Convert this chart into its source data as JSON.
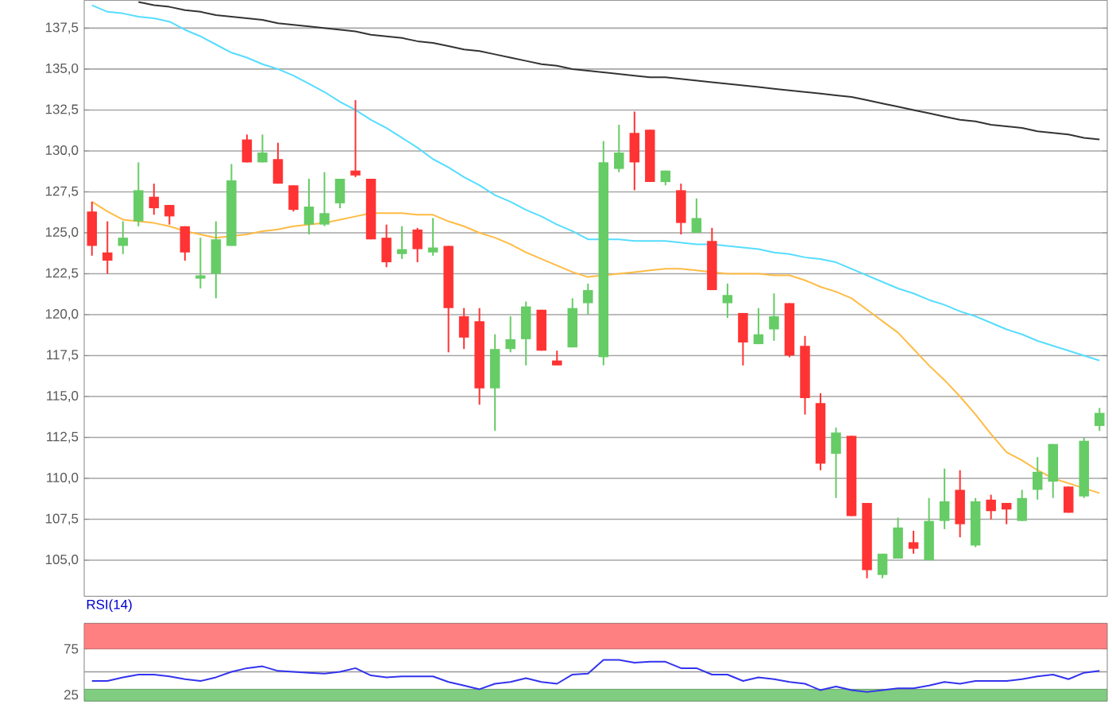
{
  "chart_data": [
    {
      "type": "candlestick",
      "categories": [
        null,
        null,
        null,
        null,
        null,
        null,
        null,
        null,
        null,
        null,
        null,
        null,
        null,
        null,
        null,
        null,
        null,
        null,
        null,
        null,
        null,
        null,
        null,
        null,
        null,
        null,
        null,
        null,
        null,
        null,
        null,
        null,
        null,
        null,
        null,
        null,
        null,
        null,
        null,
        null,
        null,
        null,
        null,
        null,
        null,
        null,
        null,
        null,
        null,
        null,
        null,
        null,
        null,
        null,
        null,
        null,
        null,
        null,
        null,
        null,
        null,
        null,
        null,
        null,
        null,
        null
      ],
      "ohlc": [
        [
          126.3,
          126.9,
          123.6,
          124.2
        ],
        [
          123.8,
          125.7,
          122.5,
          123.3
        ],
        [
          124.2,
          125.7,
          123.7,
          124.7
        ],
        [
          125.7,
          129.3,
          125.4,
          127.6
        ],
        [
          127.2,
          128.0,
          126.1,
          126.5
        ],
        [
          126.7,
          126.7,
          125.5,
          126.0
        ],
        [
          125.4,
          125.4,
          123.3,
          123.8
        ],
        [
          122.2,
          124.7,
          121.6,
          122.4
        ],
        [
          122.5,
          125.7,
          121.0,
          124.6
        ],
        [
          124.2,
          129.2,
          124.2,
          128.2
        ],
        [
          130.7,
          131.0,
          129.3,
          129.3
        ],
        [
          129.3,
          131.0,
          129.3,
          129.9
        ],
        [
          129.5,
          130.5,
          128.0,
          128.0
        ],
        [
          127.9,
          127.9,
          126.3,
          126.4
        ],
        [
          125.5,
          128.3,
          124.9,
          126.6
        ],
        [
          125.5,
          128.7,
          125.4,
          126.2
        ],
        [
          126.8,
          128.3,
          126.5,
          128.3
        ],
        [
          128.8,
          133.1,
          128.4,
          128.5
        ],
        [
          128.3,
          128.3,
          124.6,
          124.6
        ],
        [
          124.7,
          125.5,
          122.9,
          123.2
        ],
        [
          123.7,
          125.4,
          123.4,
          124.0
        ],
        [
          125.2,
          125.3,
          123.2,
          124.0
        ],
        [
          123.8,
          125.9,
          123.6,
          124.1
        ],
        [
          124.2,
          124.2,
          117.7,
          120.4
        ],
        [
          119.9,
          120.4,
          117.9,
          118.6
        ],
        [
          119.6,
          120.4,
          114.5,
          115.5
        ],
        [
          115.5,
          118.8,
          112.9,
          117.9
        ],
        [
          117.9,
          119.9,
          117.7,
          118.5
        ],
        [
          118.5,
          120.8,
          116.9,
          120.5
        ],
        [
          120.3,
          120.3,
          117.8,
          117.8
        ],
        [
          117.2,
          117.8,
          116.9,
          116.9
        ],
        [
          118.0,
          121.0,
          118.0,
          120.4
        ],
        [
          120.7,
          121.9,
          120.0,
          121.5
        ],
        [
          117.4,
          130.6,
          116.9,
          129.3
        ],
        [
          128.9,
          131.6,
          128.7,
          129.9
        ],
        [
          131.1,
          132.4,
          127.6,
          129.3
        ],
        [
          131.3,
          131.3,
          128.1,
          128.1
        ],
        [
          128.1,
          128.8,
          127.9,
          128.8
        ],
        [
          127.6,
          128.0,
          124.9,
          125.6
        ],
        [
          125.0,
          127.1,
          125.0,
          125.9
        ],
        [
          124.5,
          125.3,
          121.5,
          121.5
        ],
        [
          120.7,
          121.9,
          119.8,
          121.2
        ],
        [
          120.1,
          120.1,
          116.9,
          118.3
        ],
        [
          118.2,
          120.4,
          118.2,
          118.8
        ],
        [
          119.1,
          121.3,
          118.4,
          119.9
        ],
        [
          120.7,
          120.7,
          117.4,
          117.5
        ],
        [
          118.1,
          118.7,
          113.9,
          114.9
        ],
        [
          114.6,
          115.2,
          110.5,
          110.9
        ],
        [
          111.5,
          113.1,
          108.8,
          112.8
        ],
        [
          112.6,
          112.6,
          107.7,
          107.7
        ],
        [
          108.5,
          108.5,
          103.9,
          104.4
        ],
        [
          104.1,
          105.4,
          103.9,
          105.4
        ],
        [
          105.1,
          107.6,
          105.1,
          107.0
        ],
        [
          106.1,
          106.8,
          105.4,
          105.7
        ],
        [
          105.0,
          108.8,
          105.0,
          107.4
        ],
        [
          107.4,
          110.6,
          106.9,
          108.6
        ],
        [
          109.3,
          110.5,
          106.4,
          107.2
        ],
        [
          105.9,
          108.8,
          105.8,
          108.6
        ],
        [
          108.7,
          109.0,
          107.5,
          108.0
        ],
        [
          108.5,
          108.5,
          107.2,
          108.1
        ],
        [
          107.4,
          109.3,
          107.4,
          108.8
        ],
        [
          109.3,
          111.3,
          108.7,
          110.4
        ],
        [
          109.8,
          112.1,
          108.8,
          112.1
        ],
        [
          109.5,
          109.5,
          107.9,
          107.9
        ],
        [
          108.9,
          112.5,
          108.8,
          112.3
        ],
        [
          113.2,
          114.3,
          112.9,
          114.0
        ]
      ],
      "colors": [
        "#ff3333",
        "#ff3333",
        "#66cc66",
        "#66cc66",
        "#ff3333",
        "#ff3333",
        "#ff3333",
        "#66cc66",
        "#66cc66",
        "#66cc66",
        "#ff3333",
        "#66cc66",
        "#ff3333",
        "#ff3333",
        "#66cc66",
        "#66cc66",
        "#66cc66",
        "#ff3333",
        "#ff3333",
        "#ff3333",
        "#66cc66",
        "#ff3333",
        "#66cc66",
        "#ff3333",
        "#ff3333",
        "#ff3333",
        "#66cc66",
        "#66cc66",
        "#66cc66",
        "#ff3333",
        "#ff3333",
        "#66cc66",
        "#66cc66",
        "#66cc66",
        "#66cc66",
        "#ff3333",
        "#ff3333",
        "#66cc66",
        "#ff3333",
        "#66cc66",
        "#ff3333",
        "#66cc66",
        "#ff3333",
        "#66cc66",
        "#66cc66",
        "#ff3333",
        "#ff3333",
        "#ff3333",
        "#66cc66",
        "#ff3333",
        "#ff3333",
        "#66cc66",
        "#66cc66",
        "#ff3333",
        "#66cc66",
        "#66cc66",
        "#ff3333",
        "#66cc66",
        "#ff3333",
        "#ff3333",
        "#66cc66",
        "#66cc66",
        "#66cc66",
        "#ff3333",
        "#66cc66",
        "#66cc66"
      ],
      "series": [
        {
          "type": "line",
          "color": "#333333",
          "values": [
            null,
            null,
            null,
            139.1,
            138.9,
            138.8,
            138.6,
            138.5,
            138.3,
            138.2,
            138.1,
            138.0,
            137.8,
            137.7,
            137.6,
            137.5,
            137.4,
            137.3,
            137.1,
            137.0,
            136.9,
            136.7,
            136.6,
            136.4,
            136.2,
            136.1,
            135.9,
            135.7,
            135.5,
            135.3,
            135.2,
            135.0,
            134.9,
            134.8,
            134.7,
            134.6,
            134.5,
            134.5,
            134.4,
            134.3,
            134.2,
            134.1,
            134.0,
            133.9,
            133.8,
            133.7,
            133.6,
            133.5,
            133.4,
            133.3,
            133.1,
            132.9,
            132.7,
            132.5,
            132.3,
            132.1,
            131.9,
            131.8,
            131.6,
            131.5,
            131.4,
            131.2,
            131.1,
            131.0,
            130.8,
            130.7
          ]
        },
        {
          "type": "line",
          "color": "#55ddff",
          "values": [
            138.9,
            138.5,
            138.4,
            138.2,
            138.1,
            137.9,
            137.4,
            137.0,
            136.5,
            136.0,
            135.7,
            135.3,
            135.0,
            134.6,
            134.1,
            133.6,
            133.0,
            132.5,
            131.9,
            131.4,
            130.8,
            130.2,
            129.5,
            129.0,
            128.4,
            127.9,
            127.3,
            126.9,
            126.4,
            126.0,
            125.5,
            125.1,
            124.6,
            124.6,
            124.6,
            124.5,
            124.5,
            124.5,
            124.4,
            124.3,
            124.3,
            124.2,
            124.1,
            124.0,
            123.8,
            123.7,
            123.5,
            123.4,
            123.2,
            122.8,
            122.4,
            122.0,
            121.6,
            121.3,
            120.9,
            120.6,
            120.2,
            119.9,
            119.5,
            119.1,
            118.8,
            118.4,
            118.1,
            117.8,
            117.5,
            117.2
          ]
        },
        {
          "type": "line",
          "color": "#ffbb44",
          "values": [
            126.9,
            126.3,
            125.8,
            125.7,
            125.6,
            125.4,
            125.1,
            124.9,
            124.7,
            124.8,
            124.9,
            125.1,
            125.2,
            125.4,
            125.5,
            125.6,
            125.8,
            126.0,
            126.2,
            126.2,
            126.2,
            126.1,
            126.1,
            125.7,
            125.4,
            125.0,
            124.7,
            124.3,
            123.8,
            123.4,
            123.0,
            122.6,
            122.3,
            122.4,
            122.5,
            122.6,
            122.7,
            122.8,
            122.8,
            122.7,
            122.6,
            122.5,
            122.5,
            122.5,
            122.4,
            122.4,
            122.1,
            121.7,
            121.4,
            121.0,
            120.3,
            119.6,
            118.9,
            117.9,
            116.9,
            116.0,
            115.0,
            113.9,
            112.7,
            111.6,
            111.1,
            110.5,
            110.0,
            109.7,
            109.4,
            109.1
          ]
        }
      ],
      "ylim": [
        102.8,
        139.2
      ],
      "yticks": [
        {
          "value": 105,
          "label": "105,0"
        },
        {
          "value": 107.5,
          "label": "107,5"
        },
        {
          "value": 110,
          "label": "110,0"
        },
        {
          "value": 112.5,
          "label": "112,5"
        },
        {
          "value": 115,
          "label": "115,0"
        },
        {
          "value": 117.5,
          "label": "117,5"
        },
        {
          "value": 120,
          "label": "120,0"
        },
        {
          "value": 122.5,
          "label": "122,5"
        },
        {
          "value": 125,
          "label": "125,0"
        },
        {
          "value": 127.5,
          "label": "127,5"
        },
        {
          "value": 130,
          "label": "130,0"
        },
        {
          "value": 132.5,
          "label": "132,5"
        },
        {
          "value": 135,
          "label": "135,0"
        },
        {
          "value": 137.5,
          "label": "137,5"
        }
      ],
      "grid": "y",
      "tick_labels": "y"
    },
    {
      "type": "line",
      "title": "RSI(14)",
      "categories": [
        null,
        null,
        null,
        null,
        null,
        null,
        null,
        null,
        null,
        null,
        null,
        null,
        null,
        null,
        null,
        null,
        null,
        null,
        null,
        null,
        null,
        null,
        null,
        null,
        null,
        null,
        null,
        null,
        null,
        null,
        null,
        null,
        null,
        null,
        null,
        null,
        null,
        null,
        null,
        null,
        null,
        null,
        null,
        null,
        null,
        null,
        null,
        null,
        null,
        null,
        null,
        null,
        null,
        null,
        null,
        null,
        null,
        null,
        null,
        null,
        null,
        null,
        null,
        null,
        null,
        null
      ],
      "series": [
        {
          "color": "#3333ee",
          "values": [
            40,
            40,
            44,
            47,
            47,
            45,
            42,
            40,
            44,
            50,
            54,
            56,
            51,
            50,
            49,
            48,
            50,
            54,
            46,
            44,
            45,
            45,
            45,
            39,
            35,
            31,
            37,
            39,
            43,
            39,
            37,
            47,
            48,
            63,
            63,
            60,
            61,
            61,
            54,
            54,
            47,
            47,
            40,
            44,
            42,
            39,
            37,
            30,
            34,
            30,
            28,
            30,
            32,
            32,
            35,
            39,
            37,
            40,
            40,
            40,
            42,
            45,
            47,
            42,
            49,
            51
          ]
        }
      ],
      "ylim": [
        18,
        103
      ],
      "yticks": [
        25,
        75
      ],
      "bands": [
        {
          "axis": "y",
          "from": 75,
          "to": 103,
          "color": "#ff8080"
        },
        {
          "axis": "y",
          "from": 18,
          "to": 31,
          "color": "#80cc80"
        }
      ],
      "ref_lines": [
        {
          "axis": "y",
          "value": 50,
          "color": "#999999"
        }
      ],
      "tick_labels": "y"
    }
  ]
}
